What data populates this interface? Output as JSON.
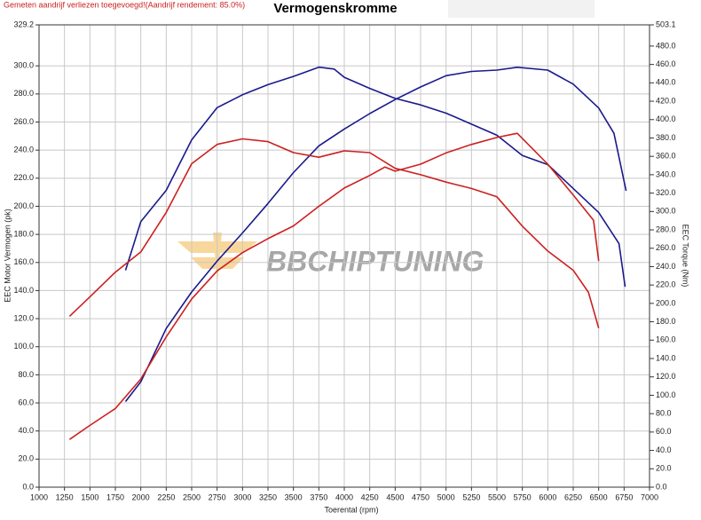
{
  "chart_data": {
    "type": "line",
    "note": "Gemeten aandrijf verliezen toegevoegd!(Aandrijf rendement: 85.0%)",
    "title": "Vermogenskromme",
    "xlabel": "Toerental (rpm)",
    "ylabel": "EEC Motor Vermogen (pk)",
    "y2label": "EEC Torque (Nm)",
    "watermark": "BBCHIPTUNING",
    "grid": true,
    "xlim": [
      1000,
      7000
    ],
    "xticks": [
      1000,
      1250,
      1500,
      1750,
      2000,
      2250,
      2500,
      2750,
      3000,
      3250,
      3500,
      3750,
      4000,
      4250,
      4500,
      4750,
      5000,
      5250,
      5500,
      5750,
      6000,
      6250,
      6500,
      6750,
      7000
    ],
    "ylim": [
      0,
      329.2
    ],
    "yticks": [
      {
        "value": 0,
        "label": "0.0"
      },
      {
        "value": 20,
        "label": "20.0"
      },
      {
        "value": 40,
        "label": "40.0"
      },
      {
        "value": 60,
        "label": "60.0"
      },
      {
        "value": 80,
        "label": "80.0"
      },
      {
        "value": 100,
        "label": "100.0"
      },
      {
        "value": 120,
        "label": "120.0"
      },
      {
        "value": 140,
        "label": "140.0"
      },
      {
        "value": 160,
        "label": "160.0"
      },
      {
        "value": 180,
        "label": "180.0"
      },
      {
        "value": 200,
        "label": "200.0"
      },
      {
        "value": 220,
        "label": "220.0"
      },
      {
        "value": 240,
        "label": "240.0"
      },
      {
        "value": 260,
        "label": "260.0"
      },
      {
        "value": 280,
        "label": "280.0"
      },
      {
        "value": 300,
        "label": "300.0"
      },
      {
        "value": 329.2,
        "label": "329.2"
      }
    ],
    "y2lim": [
      0,
      503.1
    ],
    "y2ticks": [
      {
        "value": 0,
        "label": "0.0"
      },
      {
        "value": 20,
        "label": "20.0"
      },
      {
        "value": 40,
        "label": "40.0"
      },
      {
        "value": 60,
        "label": "60.0"
      },
      {
        "value": 80,
        "label": "80.0"
      },
      {
        "value": 100,
        "label": "100.0"
      },
      {
        "value": 120,
        "label": "120.0"
      },
      {
        "value": 140,
        "label": "140.0"
      },
      {
        "value": 160,
        "label": "160.0"
      },
      {
        "value": 180,
        "label": "180.0"
      },
      {
        "value": 200,
        "label": "200.0"
      },
      {
        "value": 220,
        "label": "220.0"
      },
      {
        "value": 240,
        "label": "240.0"
      },
      {
        "value": 260,
        "label": "260.0"
      },
      {
        "value": 280,
        "label": "280.0"
      },
      {
        "value": 300,
        "label": "300.0"
      },
      {
        "value": 320,
        "label": "320.0"
      },
      {
        "value": 340,
        "label": "340.0"
      },
      {
        "value": 360,
        "label": "360.0"
      },
      {
        "value": 380,
        "label": "380.0"
      },
      {
        "value": 400,
        "label": "400.0"
      },
      {
        "value": 420,
        "label": "420.0"
      },
      {
        "value": 440,
        "label": "440.0"
      },
      {
        "value": 460,
        "label": "460.0"
      },
      {
        "value": 480,
        "label": "480.0"
      },
      {
        "value": 503.1,
        "label": "503.1"
      }
    ],
    "series": [
      {
        "color": "#1a1a8c",
        "axis": "y2",
        "x": [
          1850,
          2000,
          2250,
          2500,
          2750,
          3000,
          3250,
          3500,
          3750,
          3900,
          4000,
          4250,
          4500,
          4750,
          5000,
          5250,
          5500,
          5750,
          6000,
          6250,
          6500,
          6700,
          6760
        ],
        "values": [
          236,
          289,
          323,
          378,
          413,
          427,
          438,
          447,
          457,
          455,
          446,
          434,
          423,
          416,
          407,
          395,
          383,
          361,
          351,
          325,
          299,
          265,
          218
        ]
      },
      {
        "color": "#1a1a8c",
        "x": [
          1850,
          2000,
          2250,
          2500,
          2750,
          3000,
          3250,
          3500,
          3750,
          4000,
          4250,
          4500,
          4750,
          5000,
          5250,
          5500,
          5700,
          6000,
          6250,
          6500,
          6650,
          6770
        ],
        "values": [
          61,
          75,
          113,
          139,
          161,
          181,
          202,
          224,
          243,
          255,
          266,
          276,
          285,
          293,
          296,
          297,
          299,
          297,
          287,
          270,
          252,
          211
        ]
      },
      {
        "color": "#cc2020",
        "axis": "y2",
        "x": [
          1300,
          1500,
          1750,
          2000,
          2250,
          2500,
          2750,
          3000,
          3250,
          3500,
          3750,
          4000,
          4250,
          4500,
          4750,
          5000,
          5250,
          5500,
          5750,
          6000,
          6250,
          6400,
          6500
        ],
        "values": [
          186,
          207,
          234,
          256,
          299,
          352,
          373,
          379,
          376,
          364,
          359,
          366,
          364,
          347,
          340,
          332,
          325,
          316,
          284,
          257,
          236,
          212,
          173
        ]
      },
      {
        "color": "#cc2020",
        "x": [
          1300,
          1500,
          1750,
          2000,
          2250,
          2500,
          2750,
          3000,
          3250,
          3500,
          3750,
          4000,
          4250,
          4400,
          4500,
          4750,
          5000,
          5250,
          5500,
          5700,
          6000,
          6250,
          6450,
          6500
        ],
        "values": [
          34,
          44,
          56,
          77,
          107,
          134,
          154,
          167,
          177,
          186,
          200,
          213,
          222,
          228,
          225,
          230,
          238,
          244,
          249,
          252,
          230,
          208,
          190,
          161
        ]
      }
    ]
  }
}
